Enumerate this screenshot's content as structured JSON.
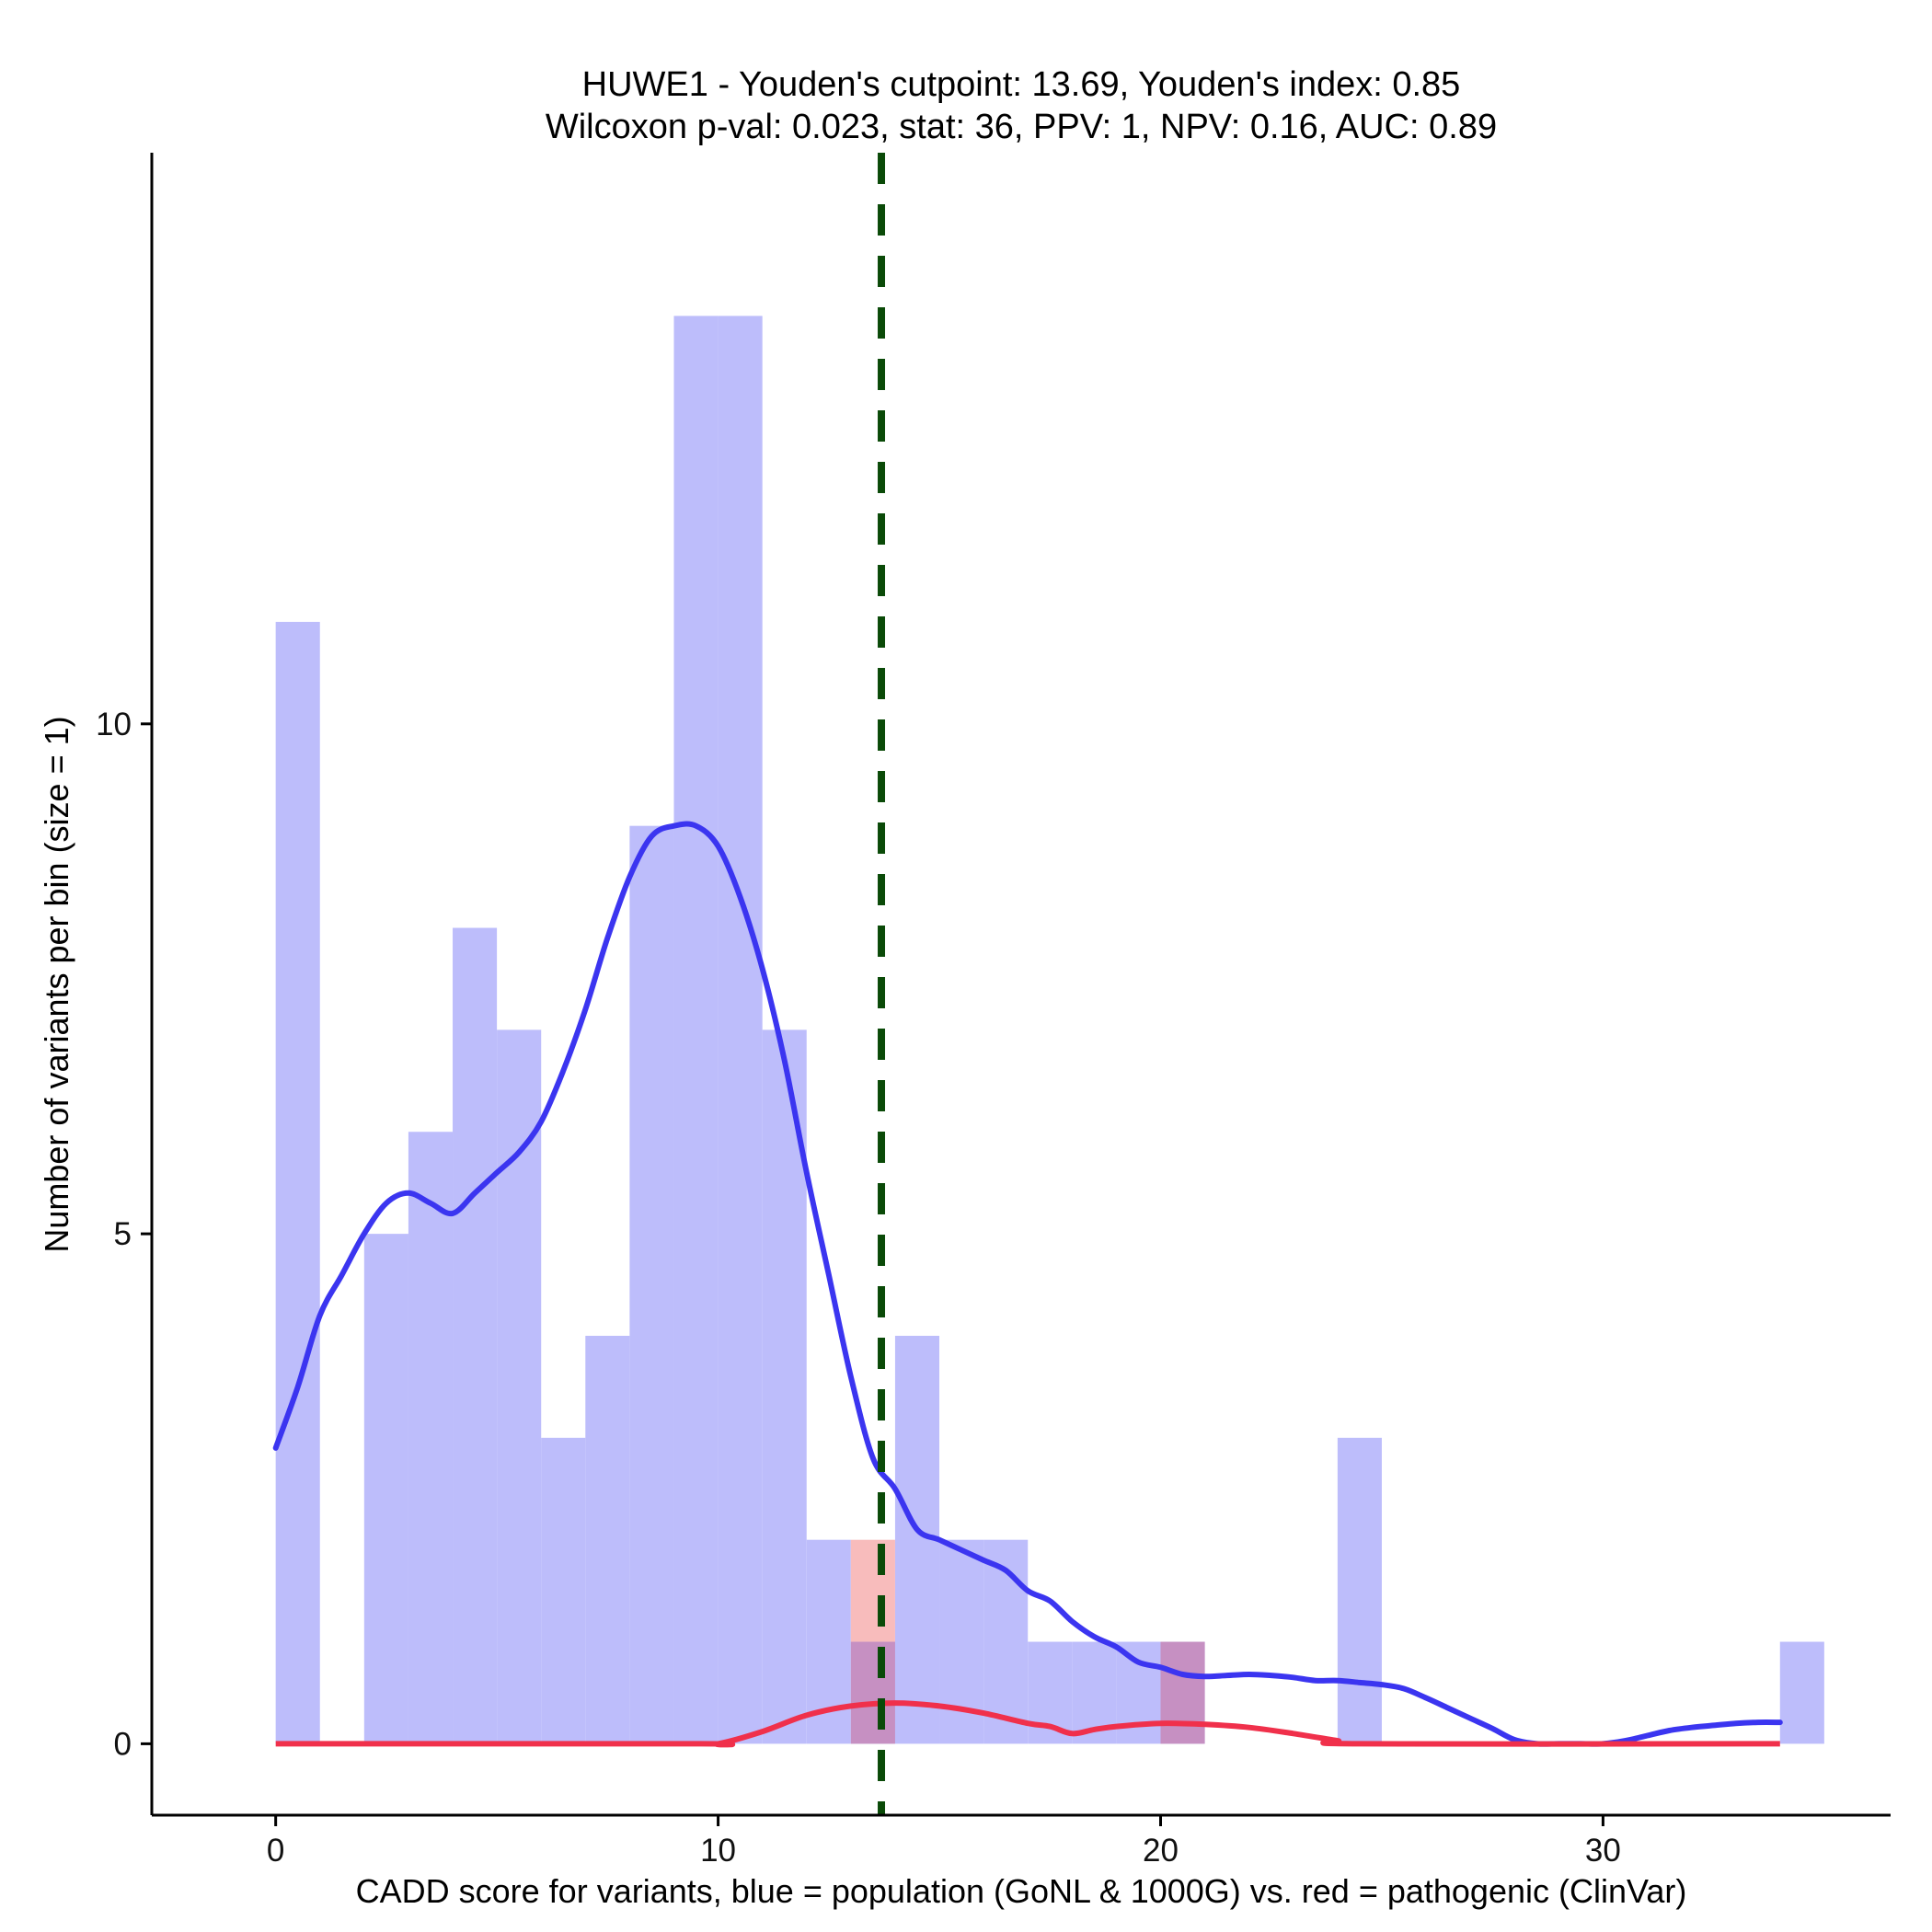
{
  "chart_data": {
    "type": "histogram",
    "title": "HUWE1 - Youden's cutpoint: 13.69, Youden's index: 0.85",
    "subtitle": "Wilcoxon p-val: 0.023, stat: 36, PPV: 1, NPV: 0.16, AUC: 0.89",
    "xlabel": "CADD score for variants, blue = population (GoNL & 1000G) vs. red = pathogenic (ClinVar)",
    "ylabel": "Number of variants per bin (size = 1)",
    "xlim": [
      -2.8,
      36.5
    ],
    "ylim": [
      -0.7,
      15.6
    ],
    "x_ticks": [
      0,
      10,
      20,
      30
    ],
    "y_ticks": [
      0,
      5,
      10
    ],
    "bin_size": 1,
    "cutpoint": 13.69,
    "colors": {
      "population_fill": "#bdbdfb",
      "pathogenic_fill": "#f8bcbc",
      "overlap_fill": "#c690c2",
      "population_line": "#3b35f0",
      "pathogenic_line": "#f0304b",
      "cutpoint_line": "#0a4a08",
      "axis": "#000000"
    },
    "series": [
      {
        "name": "population (GoNL & 1000G)",
        "bins": [
          {
            "start": 0,
            "count": 11
          },
          {
            "start": 2,
            "count": 5
          },
          {
            "start": 3,
            "count": 6
          },
          {
            "start": 4,
            "count": 8
          },
          {
            "start": 5,
            "count": 7
          },
          {
            "start": 6,
            "count": 3
          },
          {
            "start": 7,
            "count": 4
          },
          {
            "start": 8,
            "count": 9
          },
          {
            "start": 9,
            "count": 14
          },
          {
            "start": 10,
            "count": 14
          },
          {
            "start": 11,
            "count": 7
          },
          {
            "start": 12,
            "count": 2
          },
          {
            "start": 13,
            "count": 1
          },
          {
            "start": 14,
            "count": 4
          },
          {
            "start": 15,
            "count": 2
          },
          {
            "start": 16,
            "count": 2
          },
          {
            "start": 17,
            "count": 1
          },
          {
            "start": 18,
            "count": 1
          },
          {
            "start": 19,
            "count": 1
          },
          {
            "start": 20,
            "count": 1
          },
          {
            "start": 24,
            "count": 3
          },
          {
            "start": 34,
            "count": 1
          }
        ],
        "density_curve": [
          [
            0,
            2.9
          ],
          [
            0.5,
            3.5
          ],
          [
            1,
            4.2
          ],
          [
            1.5,
            4.6
          ],
          [
            2,
            5.0
          ],
          [
            2.5,
            5.3
          ],
          [
            3,
            5.4
          ],
          [
            3.5,
            5.3
          ],
          [
            4,
            5.2
          ],
          [
            4.5,
            5.4
          ],
          [
            5,
            5.6
          ],
          [
            5.5,
            5.8
          ],
          [
            6,
            6.1
          ],
          [
            6.5,
            6.6
          ],
          [
            7,
            7.2
          ],
          [
            7.5,
            7.9
          ],
          [
            8,
            8.5
          ],
          [
            8.5,
            8.9
          ],
          [
            9,
            9.0
          ],
          [
            9.5,
            9.0
          ],
          [
            10,
            8.8
          ],
          [
            10.5,
            8.3
          ],
          [
            11,
            7.6
          ],
          [
            11.5,
            6.7
          ],
          [
            12,
            5.6
          ],
          [
            12.5,
            4.6
          ],
          [
            13,
            3.6
          ],
          [
            13.5,
            2.8
          ],
          [
            14,
            2.5
          ],
          [
            14.5,
            2.1
          ],
          [
            15,
            2.0
          ],
          [
            15.5,
            1.9
          ],
          [
            16,
            1.8
          ],
          [
            16.5,
            1.7
          ],
          [
            17,
            1.5
          ],
          [
            17.5,
            1.4
          ],
          [
            18,
            1.2
          ],
          [
            18.5,
            1.05
          ],
          [
            19,
            0.95
          ],
          [
            19.5,
            0.8
          ],
          [
            20,
            0.75
          ],
          [
            20.5,
            0.68
          ],
          [
            21,
            0.66
          ],
          [
            21.5,
            0.67
          ],
          [
            22,
            0.68
          ],
          [
            22.5,
            0.67
          ],
          [
            23,
            0.65
          ],
          [
            23.5,
            0.62
          ],
          [
            24,
            0.62
          ],
          [
            24.5,
            0.6
          ],
          [
            25,
            0.58
          ],
          [
            25.5,
            0.54
          ],
          [
            26,
            0.45
          ],
          [
            26.5,
            0.35
          ],
          [
            27,
            0.25
          ],
          [
            27.5,
            0.15
          ],
          [
            28,
            0.04
          ],
          [
            28.5,
            0.0
          ],
          [
            29,
            0.0
          ],
          [
            29.5,
            0.0
          ],
          [
            30,
            0.0
          ],
          [
            30.5,
            0.03
          ],
          [
            31,
            0.08
          ],
          [
            31.5,
            0.13
          ],
          [
            32,
            0.16
          ],
          [
            32.5,
            0.18
          ],
          [
            33,
            0.2
          ],
          [
            33.5,
            0.21
          ],
          [
            34,
            0.21
          ]
        ]
      },
      {
        "name": "pathogenic (ClinVar)",
        "bins": [
          {
            "start": 13,
            "count": 2
          },
          {
            "start": 20,
            "count": 1
          }
        ],
        "density_curve": [
          [
            0,
            0
          ],
          [
            9.5,
            0
          ],
          [
            10,
            0
          ],
          [
            11,
            0.12
          ],
          [
            12,
            0.28
          ],
          [
            13,
            0.37
          ],
          [
            14,
            0.4
          ],
          [
            15,
            0.37
          ],
          [
            16,
            0.3
          ],
          [
            17,
            0.2
          ],
          [
            17.5,
            0.17
          ],
          [
            18,
            0.1
          ],
          [
            18.5,
            0.14
          ],
          [
            19,
            0.17
          ],
          [
            20,
            0.2
          ],
          [
            21,
            0.19
          ],
          [
            22,
            0.16
          ],
          [
            23,
            0.1
          ],
          [
            24,
            0.03
          ],
          [
            24.5,
            0
          ],
          [
            34,
            0
          ]
        ]
      }
    ]
  }
}
